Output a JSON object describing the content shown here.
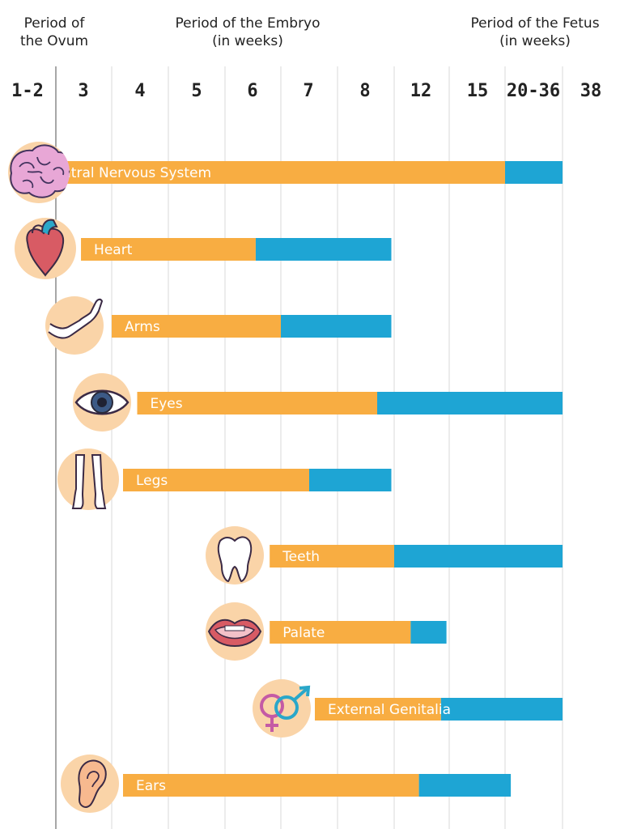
{
  "periods": {
    "ovum": "Period of\nthe Ovum",
    "embryo": "Period of the Embryo\n(in weeks)",
    "fetus": "Period of the Fetus\n(in weeks)"
  },
  "colors": {
    "sensitive": "#f8ad42",
    "less_sensitive": "#1ea5d4",
    "gridline": "#d9d9d9",
    "icon_bg": "#fad4a8"
  },
  "chart_data": {
    "type": "bar",
    "orientation": "horizontal",
    "categories": [
      "1-2",
      "3",
      "4",
      "5",
      "6",
      "7",
      "8",
      "12",
      "15",
      "20-36",
      "38"
    ],
    "grid": true,
    "bars": [
      {
        "label": "Central Nervous System",
        "icon": "brain-icon",
        "start": 0.3,
        "orange_end": 9.0,
        "end": 10.0
      },
      {
        "label": "Heart",
        "icon": "heart-icon",
        "start": 1.45,
        "orange_end": 4.55,
        "end": 6.95
      },
      {
        "label": "Arms",
        "icon": "arm-icon",
        "start": 2.0,
        "orange_end": 5.0,
        "end": 6.95
      },
      {
        "label": "Eyes",
        "icon": "eye-icon",
        "start": 2.45,
        "orange_end": 6.7,
        "end": 10.0
      },
      {
        "label": "Legs",
        "icon": "legs-icon",
        "start": 2.2,
        "orange_end": 5.5,
        "end": 6.95
      },
      {
        "label": "Teeth",
        "icon": "tooth-icon",
        "start": 4.8,
        "orange_end": 7.0,
        "end": 10.0
      },
      {
        "label": "Palate",
        "icon": "mouth-icon",
        "start": 4.8,
        "orange_end": 7.3,
        "end": 7.95
      },
      {
        "label": "External Genitalia",
        "icon": "gender-symbol-icon",
        "start": 5.6,
        "orange_end": 7.85,
        "end": 10.0
      },
      {
        "label": "Ears",
        "icon": "ear-icon",
        "start": 2.2,
        "orange_end": 7.45,
        "end": 9.1
      }
    ]
  }
}
